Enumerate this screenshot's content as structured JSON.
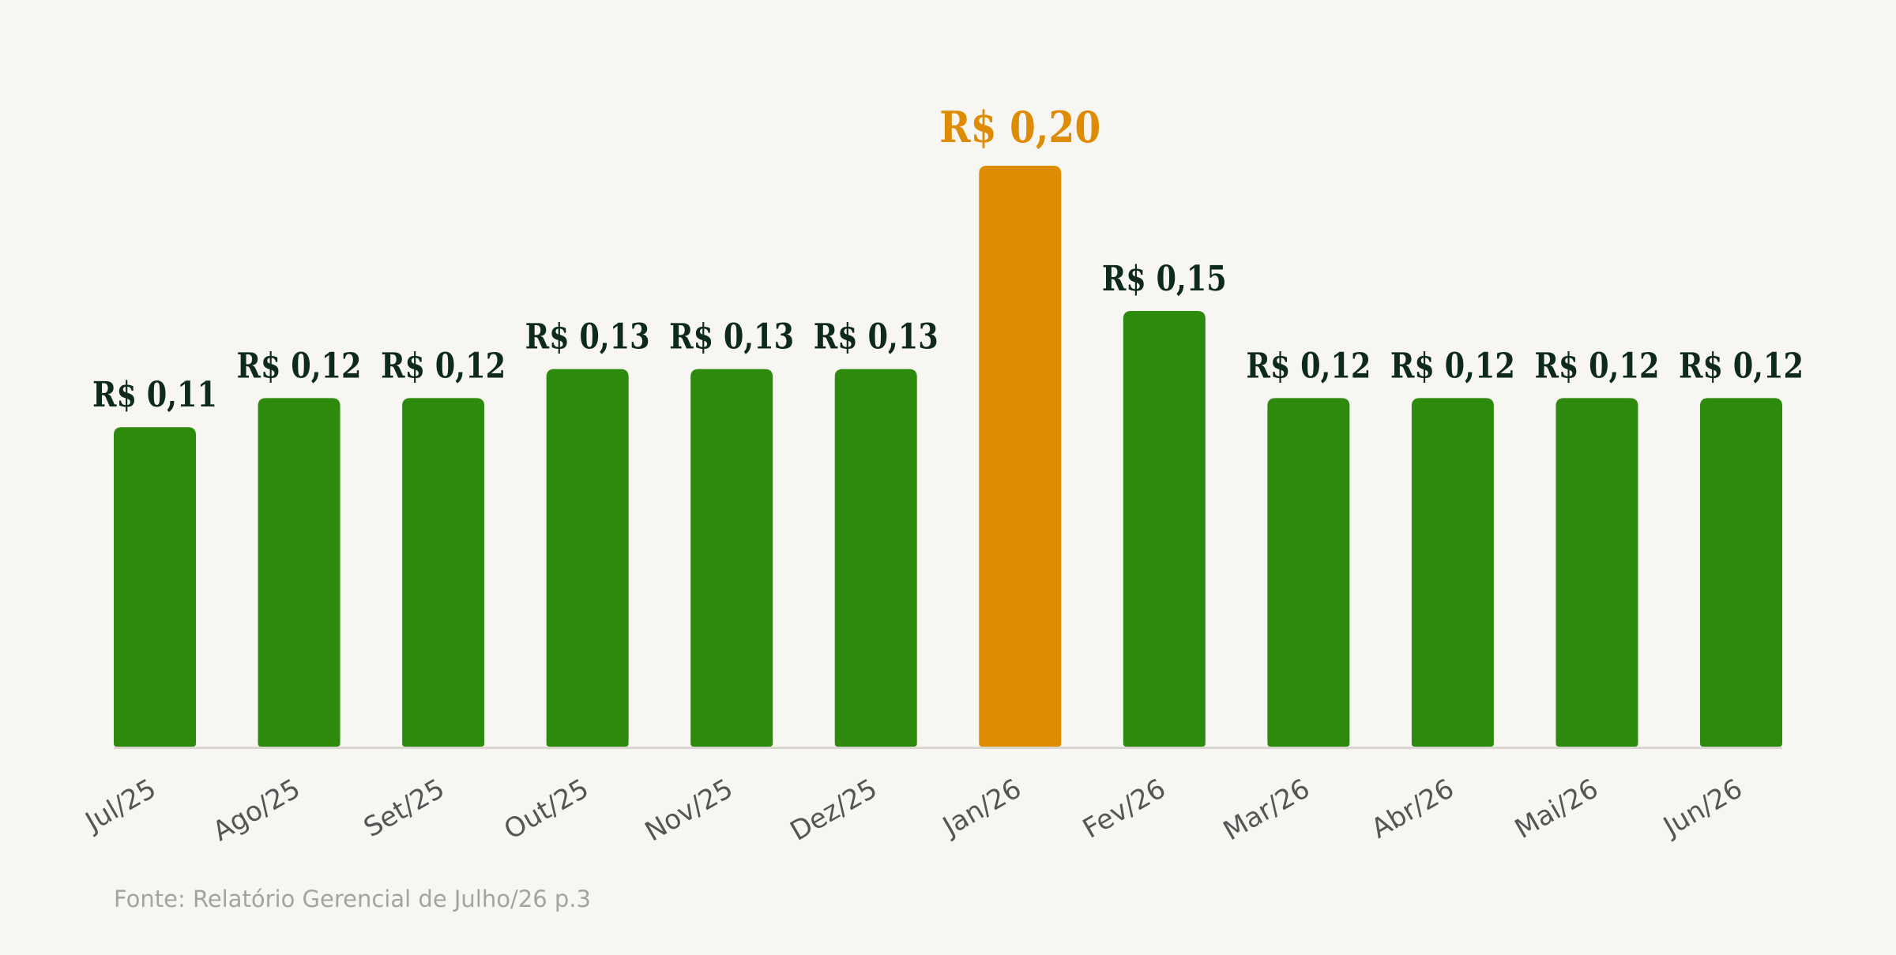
{
  "chart_data": {
    "type": "bar",
    "categories": [
      "Jul/25",
      "Ago/25",
      "Set/25",
      "Out/25",
      "Nov/25",
      "Dez/25",
      "Jan/26",
      "Fev/26",
      "Mar/26",
      "Abr/26",
      "Mai/26",
      "Jun/26"
    ],
    "values": [
      0.11,
      0.12,
      0.12,
      0.13,
      0.13,
      0.13,
      0.2,
      0.15,
      0.12,
      0.12,
      0.12,
      0.12
    ],
    "value_labels": [
      "R$ 0,11",
      "R$ 0,12",
      "R$ 0,12",
      "R$ 0,13",
      "R$ 0,13",
      "R$ 0,13",
      "R$ 0,20",
      "R$ 0,15",
      "R$ 0,12",
      "R$ 0,12",
      "R$ 0,12",
      "R$ 0,12"
    ],
    "highlight_index": 6,
    "title": "",
    "xlabel": "",
    "ylabel": "",
    "ylim": [
      0,
      0.2
    ],
    "grid": false,
    "legend": "none"
  },
  "colors": {
    "background": "#f7f6f2",
    "bar": "#2d8a0c",
    "bar_highlight": "#de8c03",
    "value_label": "#0e2a1e",
    "value_label_highlight": "#de8c03",
    "tick_label": "#555555",
    "baseline": "#d9d7cf",
    "source": "#a3a3a0"
  },
  "source": "Fonte: Relatório Gerencial de Julho/26 p.3"
}
